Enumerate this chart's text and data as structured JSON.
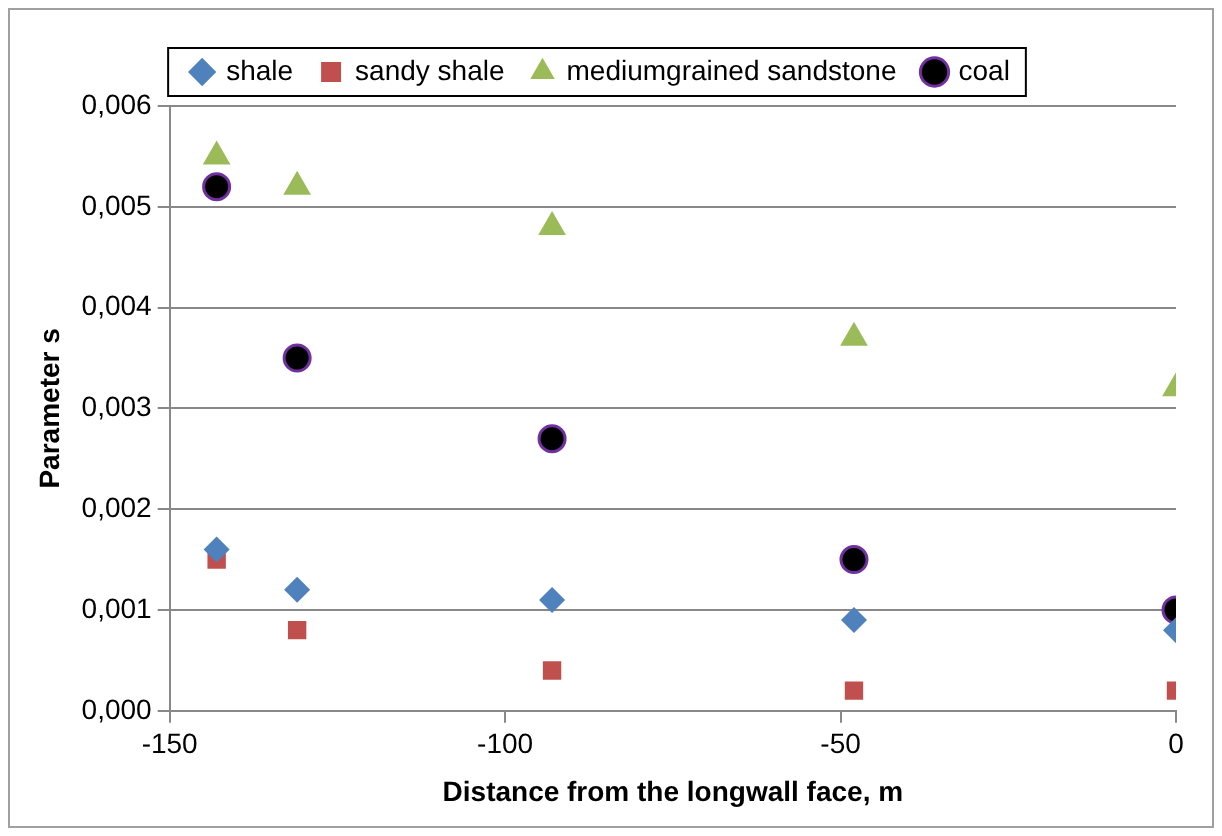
{
  "chart_data": {
    "type": "scatter",
    "xlabel": "Distance from the longwall face, m",
    "ylabel": "Parameter s",
    "x": [
      -143,
      -131,
      -93,
      -48,
      0
    ],
    "series": [
      {
        "name": "shale",
        "color": "#4f81bd",
        "marker": "diamond",
        "values": [
          0.0016,
          0.0012,
          0.0011,
          0.0009,
          0.0008
        ]
      },
      {
        "name": "sandy shale",
        "color": "#c0504d",
        "marker": "square",
        "values": [
          0.0015,
          0.0008,
          0.0004,
          0.0002,
          0.0002
        ]
      },
      {
        "name": "mediumgrained sandstone",
        "color": "#9bbb59",
        "marker": "triangle",
        "values": [
          0.0055,
          0.0052,
          0.0048,
          0.0037,
          0.0032
        ]
      },
      {
        "name": "coal",
        "color": "#000000",
        "marker": "circle",
        "values": [
          0.0052,
          0.0035,
          0.0027,
          0.0015,
          0.001
        ]
      }
    ],
    "xlim": [
      -150,
      0
    ],
    "xticks": [
      -150,
      -100,
      -50,
      0
    ],
    "ylim": [
      0,
      0.006
    ],
    "yticks": [
      {
        "value": 0,
        "label": "0,000"
      },
      {
        "value": 0.001,
        "label": "0,001"
      },
      {
        "value": 0.002,
        "label": "0,002"
      },
      {
        "value": 0.003,
        "label": "0,003"
      },
      {
        "value": 0.004,
        "label": "0,004"
      },
      {
        "value": 0.005,
        "label": "0,005"
      },
      {
        "value": 0.006,
        "label": "0,006"
      }
    ],
    "grid": "y",
    "legend": "top"
  }
}
